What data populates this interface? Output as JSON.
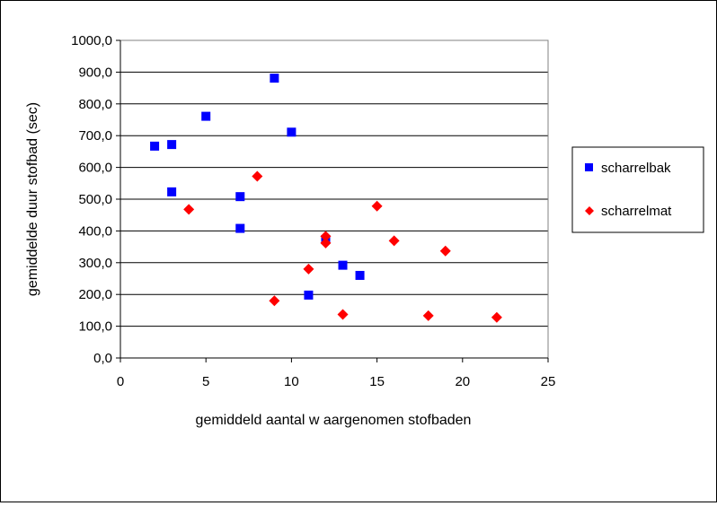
{
  "chart_data": {
    "type": "scatter",
    "title": "",
    "xlabel": "gemiddeld aantal w aargenomen stofbaden",
    "ylabel": "gemiddelde duur stofbad (sec)",
    "xlim": [
      0,
      25
    ],
    "ylim": [
      0,
      1000
    ],
    "x_ticks": [
      0,
      5,
      10,
      15,
      20,
      25
    ],
    "y_ticks": [
      0,
      100,
      200,
      300,
      400,
      500,
      600,
      700,
      800,
      900,
      1000
    ],
    "x_tick_labels": [
      "0",
      "5",
      "10",
      "15",
      "20",
      "25"
    ],
    "y_tick_labels": [
      "0,0",
      "100,0",
      "200,0",
      "300,0",
      "400,0",
      "500,0",
      "600,0",
      "700,0",
      "800,0",
      "900,0",
      "1000,0"
    ],
    "grid": "horizontal",
    "legend_position": "right",
    "series": [
      {
        "name": "scharrelbak",
        "color": "#0000ff",
        "marker": "square",
        "points": [
          [
            2,
            667
          ],
          [
            3,
            672
          ],
          [
            3,
            523
          ],
          [
            5,
            761
          ],
          [
            7,
            508
          ],
          [
            7,
            408
          ],
          [
            9,
            881
          ],
          [
            10,
            711
          ],
          [
            11,
            198
          ],
          [
            12,
            373
          ],
          [
            13,
            292
          ],
          [
            14,
            260
          ]
        ]
      },
      {
        "name": "scharrelmat",
        "color": "#ff0000",
        "marker": "diamond",
        "points": [
          [
            4,
            468
          ],
          [
            8,
            572
          ],
          [
            9,
            180
          ],
          [
            11,
            280
          ],
          [
            12,
            383
          ],
          [
            12,
            362
          ],
          [
            13,
            137
          ],
          [
            15,
            478
          ],
          [
            16,
            369
          ],
          [
            18,
            133
          ],
          [
            19,
            337
          ],
          [
            22,
            128
          ]
        ]
      }
    ]
  }
}
